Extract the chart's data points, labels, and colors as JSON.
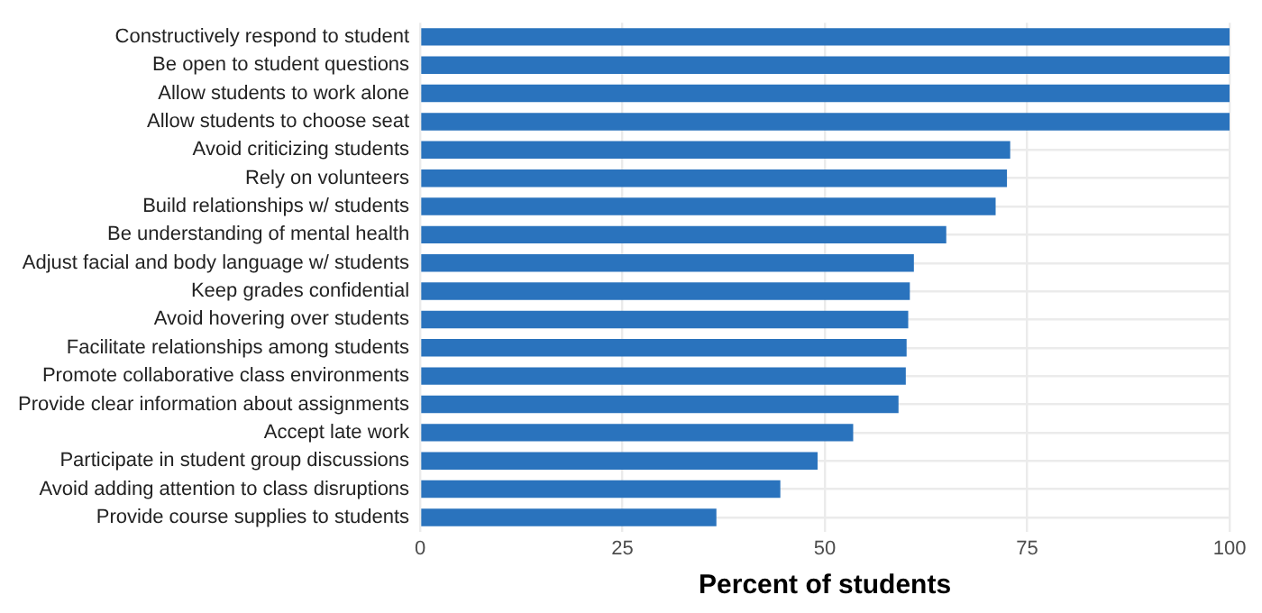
{
  "chart_data": {
    "type": "bar",
    "orientation": "horizontal",
    "xlabel": "Percent of students",
    "categories": [
      "Constructively respond to student",
      "Be open to student questions",
      "Allow students to work alone",
      "Allow students to choose seat",
      "Avoid criticizing students",
      "Rely on volunteers",
      "Build relationships w/ students",
      "Be understanding of mental health",
      "Adjust facial and body language w/ students",
      "Keep grades confidential",
      "Avoid hovering over students",
      "Facilitate relationships among students",
      "Promote collaborative class environments",
      "Provide clear information about assignments",
      "Accept late work",
      "Participate in student group discussions",
      "Avoid adding attention to class disruptions",
      "Provide course supplies to students"
    ],
    "values": [
      100,
      100,
      100,
      100,
      72.9,
      72.5,
      71.1,
      65,
      61,
      60.5,
      60.3,
      60.1,
      60,
      59.1,
      53.5,
      49.1,
      44.5,
      36.6
    ],
    "color": "#2a73bd",
    "xlim": [
      0,
      100
    ],
    "xticks": [
      0,
      25,
      50,
      75,
      100
    ],
    "grid": true
  }
}
